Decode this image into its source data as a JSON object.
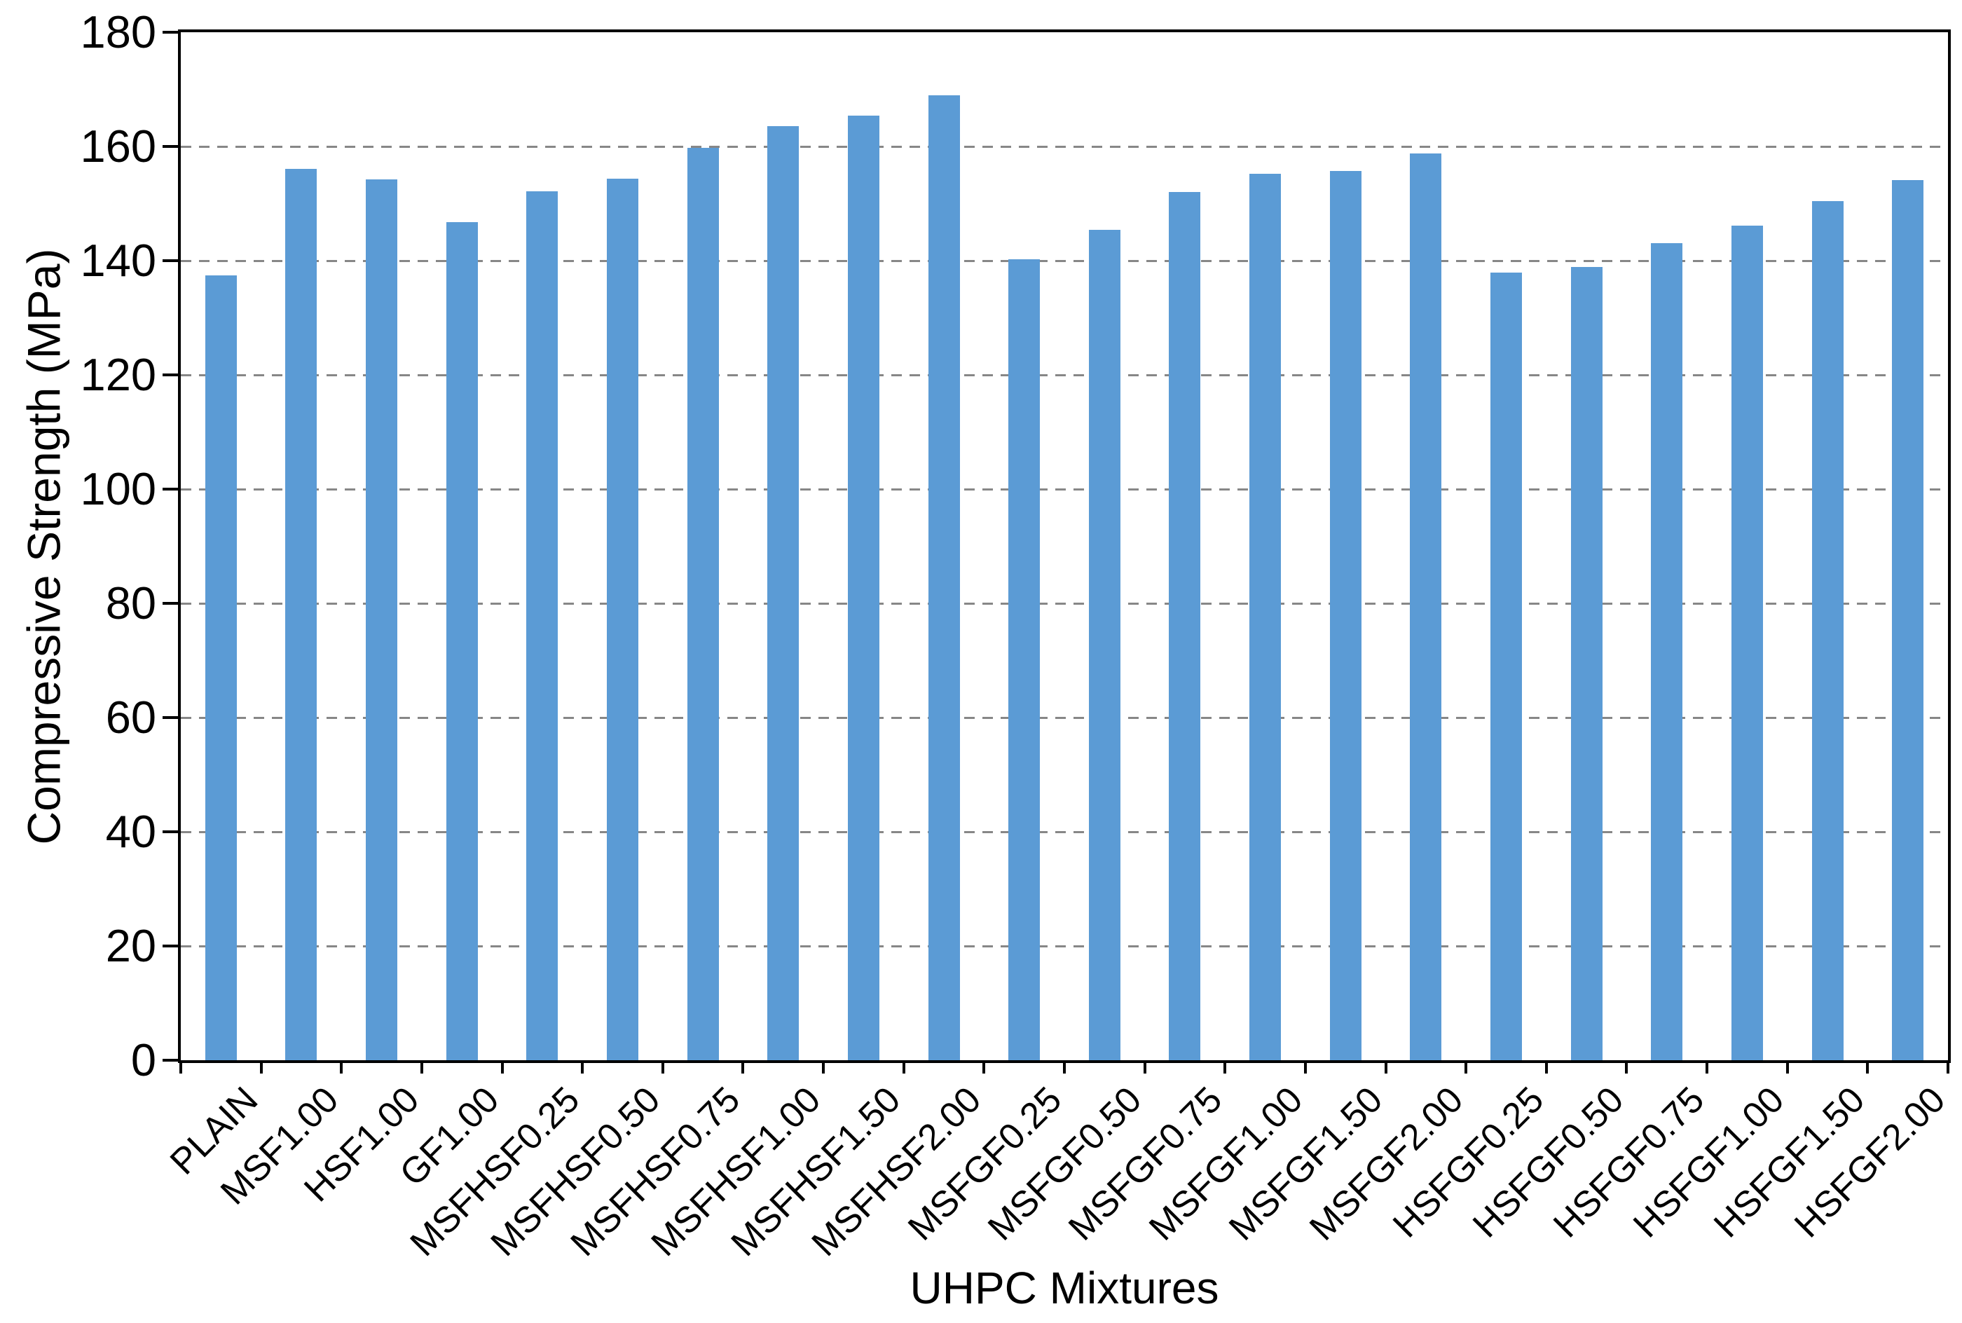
{
  "chart_data": {
    "type": "bar",
    "title": "",
    "xlabel": "UHPC Mixtures",
    "ylabel": "Compressive Strength (MPa)",
    "categories": [
      "PLAIN",
      "MSF1.00",
      "HSF1.00",
      "GF1.00",
      "MSFHSF0.25",
      "MSFHSF0.50",
      "MSFHSF0.75",
      "MSFHSF1.00",
      "MSFHSF1.50",
      "MSFHSF2.00",
      "MSFGF0.25",
      "MSFGF0.50",
      "MSFGF0.75",
      "MSFGF1.00",
      "MSFGF1.50",
      "MSFGF2.00",
      "HSFGF0.25",
      "HSFGF0.50",
      "HSFGF0.75",
      "HSFGF1.00",
      "HSFGF1.50",
      "HSFGF2.00"
    ],
    "values": [
      137.4,
      156.1,
      154.2,
      146.8,
      152.1,
      154.3,
      159.8,
      163.5,
      165.4,
      168.9,
      140.2,
      145.4,
      152.0,
      155.2,
      155.7,
      158.8,
      137.9,
      138.9,
      143.1,
      146.1,
      150.4,
      154.1
    ],
    "ylim": [
      0,
      180
    ],
    "yticks": [
      0,
      20,
      40,
      60,
      80,
      100,
      120,
      140,
      160,
      180
    ],
    "gridlines": {
      "style": "dashed",
      "at": [
        20,
        40,
        60,
        80,
        100,
        120,
        140,
        160
      ],
      "color": "#878787"
    },
    "legend": "none",
    "series_name": "Compressive Strength",
    "bar_color": "#5B9BD5",
    "axis_color": "#000000"
  }
}
